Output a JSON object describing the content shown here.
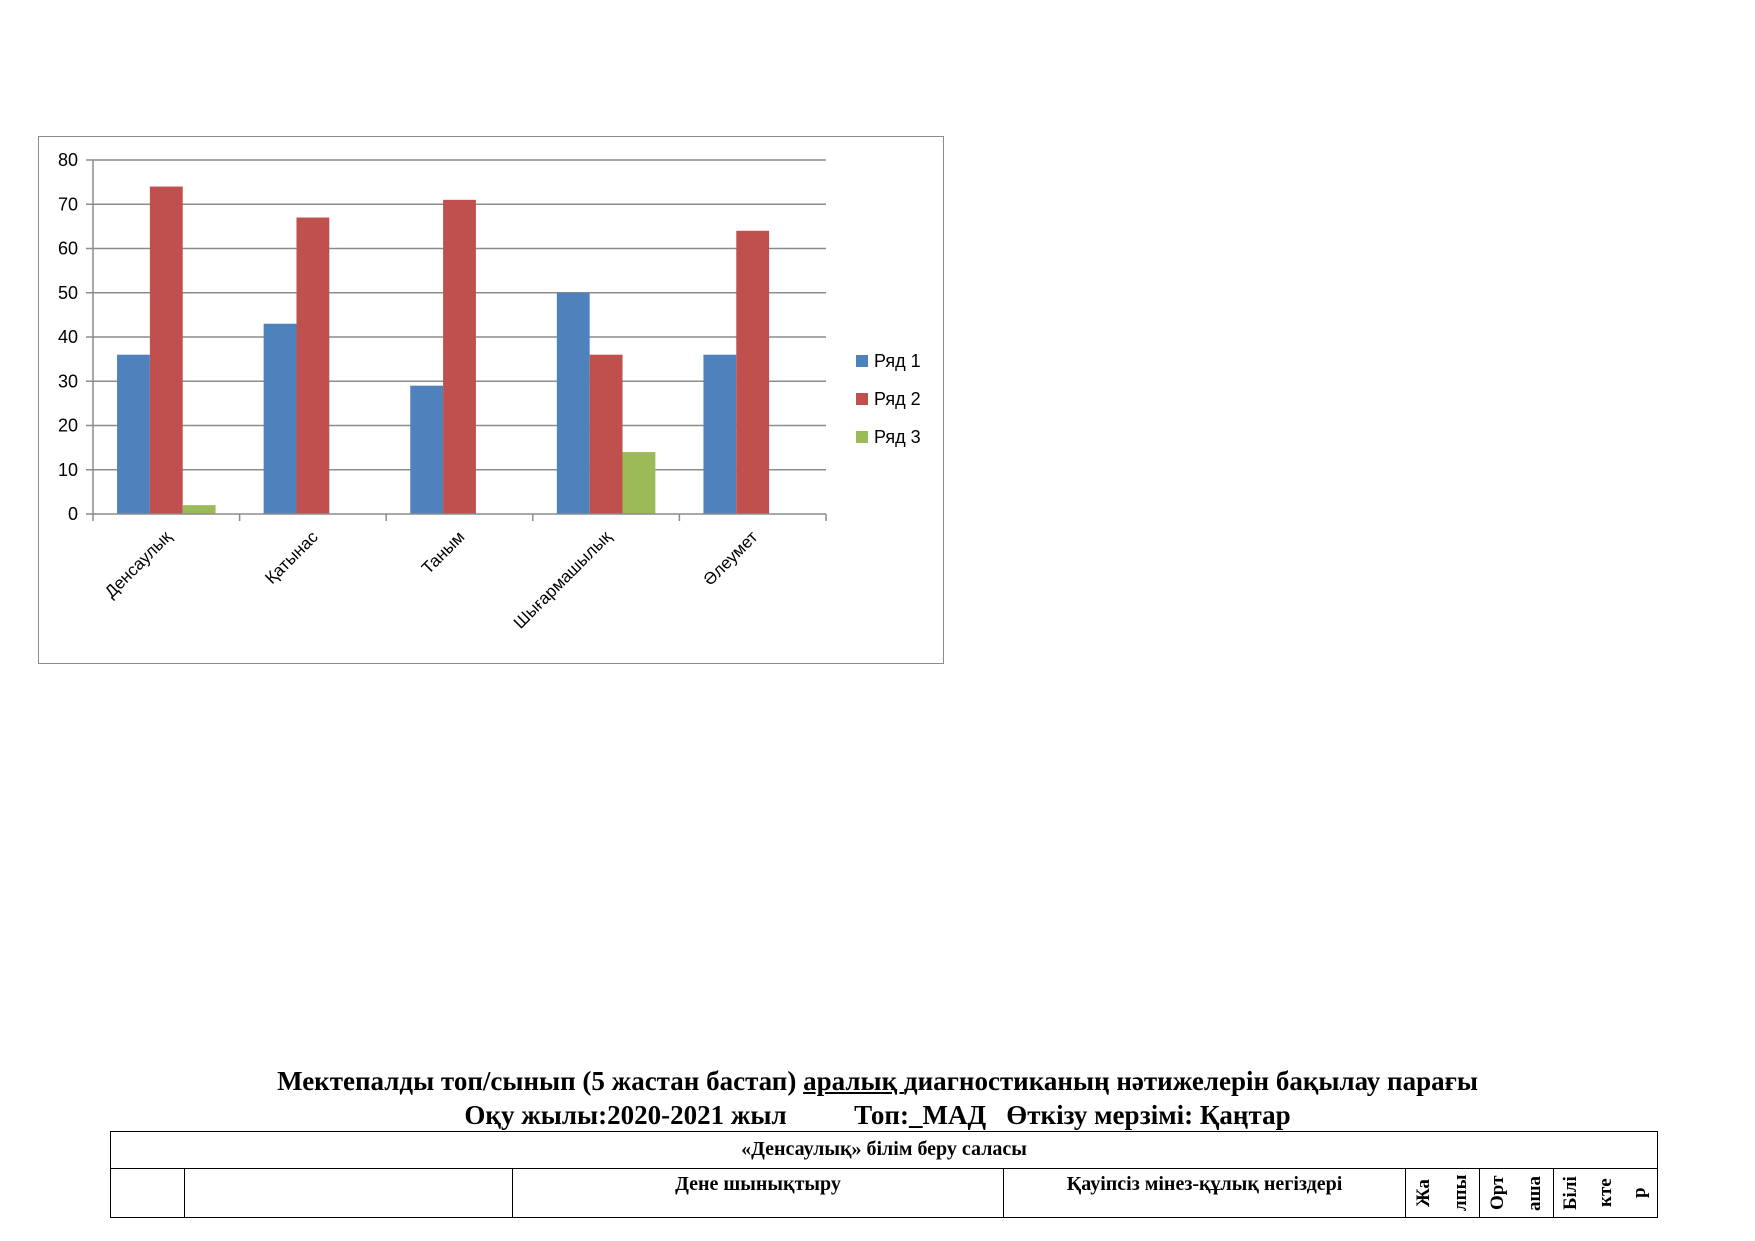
{
  "chart_data": {
    "type": "bar",
    "categories": [
      "Денсаулық",
      "Қатынас",
      "Таным",
      "Шығармашылық",
      "Әлеумет"
    ],
    "series": [
      {
        "name": "Ряд 1",
        "values": [
          36,
          43,
          29,
          50,
          36
        ],
        "color": "#4F81BD"
      },
      {
        "name": "Ряд 2",
        "values": [
          74,
          67,
          71,
          36,
          64
        ],
        "color": "#C0504D"
      },
      {
        "name": "Ряд 3",
        "values": [
          2,
          0,
          0,
          14,
          0
        ],
        "color": "#9BBB59"
      }
    ],
    "yticks": [
      0,
      10,
      20,
      30,
      40,
      50,
      60,
      70,
      80
    ],
    "ylim": [
      0,
      80
    ],
    "grid": true,
    "legend_position": "right"
  },
  "document": {
    "title_pre": "Мектепалды топ/сынып (5 жастан бастап) ",
    "title_underlined": "аралық ",
    "title_post": "диагностиканың нәтижелерін бақылау парағы",
    "subtitle": "Оқу жылы:2020-2021 жыл          Топ:_МАД   Өткізу мерзімі: Қаңтар",
    "table": {
      "area_heading": "«Денсаулық» білім беру саласы",
      "col_physical": "Дене шынықтыру",
      "col_safety": "Қауіпсіз мінез-құлық негіздері",
      "col_total": [
        "Жа",
        "лпы"
      ],
      "col_average": [
        "Орт",
        "аша"
      ],
      "col_skills": [
        "Білі",
        "кте",
        "р"
      ]
    }
  }
}
